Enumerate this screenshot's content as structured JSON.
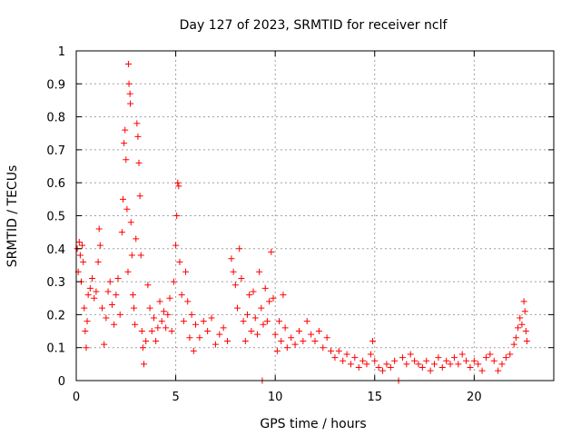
{
  "chart_data": {
    "type": "scatter",
    "title": "Day 127 of 2023, SRMTID for receiver nclf",
    "xlabel": "GPS time / hours",
    "ylabel": "SRMTID / TECUs",
    "xlim": [
      0,
      24
    ],
    "ylim": [
      0,
      1
    ],
    "xticks": [
      0,
      5,
      10,
      15,
      20
    ],
    "xtick_labels": [
      "0",
      "5",
      "10",
      "15",
      "20"
    ],
    "yticks": [
      0,
      0.1,
      0.2,
      0.3,
      0.4,
      0.5,
      0.6,
      0.7,
      0.8,
      0.9,
      1
    ],
    "ytick_labels": [
      "0",
      "0.1",
      "0.2",
      "0.3",
      "0.4",
      "0.5",
      "0.6",
      "0.7",
      "0.8",
      "0.9",
      "1"
    ],
    "grid": true,
    "marker": "+",
    "color": "#ff0000",
    "series": [
      {
        "name": "SRMTID",
        "points": [
          [
            0.05,
            0.4
          ],
          [
            0.1,
            0.33
          ],
          [
            0.15,
            0.42
          ],
          [
            0.2,
            0.38
          ],
          [
            0.25,
            0.3
          ],
          [
            0.3,
            0.41
          ],
          [
            0.35,
            0.36
          ],
          [
            0.4,
            0.22
          ],
          [
            0.45,
            0.15
          ],
          [
            0.5,
            0.1
          ],
          [
            0.55,
            0.18
          ],
          [
            0.6,
            0.26
          ],
          [
            0.7,
            0.28
          ],
          [
            0.8,
            0.31
          ],
          [
            0.9,
            0.25
          ],
          [
            1.0,
            0.27
          ],
          [
            1.1,
            0.36
          ],
          [
            1.15,
            0.46
          ],
          [
            1.2,
            0.41
          ],
          [
            1.3,
            0.22
          ],
          [
            1.4,
            0.11
          ],
          [
            1.5,
            0.19
          ],
          [
            1.6,
            0.27
          ],
          [
            1.7,
            0.3
          ],
          [
            1.8,
            0.23
          ],
          [
            1.9,
            0.17
          ],
          [
            2.0,
            0.26
          ],
          [
            2.1,
            0.31
          ],
          [
            2.2,
            0.2
          ],
          [
            2.3,
            0.45
          ],
          [
            2.35,
            0.55
          ],
          [
            2.4,
            0.72
          ],
          [
            2.45,
            0.76
          ],
          [
            2.5,
            0.67
          ],
          [
            2.55,
            0.52
          ],
          [
            2.6,
            0.33
          ],
          [
            2.62,
            0.96
          ],
          [
            2.65,
            0.9
          ],
          [
            2.7,
            0.87
          ],
          [
            2.72,
            0.84
          ],
          [
            2.75,
            0.48
          ],
          [
            2.8,
            0.38
          ],
          [
            2.85,
            0.26
          ],
          [
            2.9,
            0.22
          ],
          [
            2.95,
            0.17
          ],
          [
            3.0,
            0.43
          ],
          [
            3.05,
            0.78
          ],
          [
            3.1,
            0.74
          ],
          [
            3.15,
            0.66
          ],
          [
            3.2,
            0.56
          ],
          [
            3.25,
            0.38
          ],
          [
            3.3,
            0.15
          ],
          [
            3.35,
            0.1
          ],
          [
            3.4,
            0.05
          ],
          [
            3.5,
            0.12
          ],
          [
            3.6,
            0.29
          ],
          [
            3.7,
            0.22
          ],
          [
            3.8,
            0.15
          ],
          [
            3.9,
            0.19
          ],
          [
            4.0,
            0.12
          ],
          [
            4.1,
            0.16
          ],
          [
            4.2,
            0.24
          ],
          [
            4.3,
            0.18
          ],
          [
            4.4,
            0.21
          ],
          [
            4.5,
            0.16
          ],
          [
            4.6,
            0.2
          ],
          [
            4.7,
            0.25
          ],
          [
            4.8,
            0.15
          ],
          [
            4.9,
            0.3
          ],
          [
            5.0,
            0.41
          ],
          [
            5.05,
            0.5
          ],
          [
            5.1,
            0.6
          ],
          [
            5.15,
            0.59
          ],
          [
            5.2,
            0.36
          ],
          [
            5.3,
            0.26
          ],
          [
            5.4,
            0.18
          ],
          [
            5.5,
            0.33
          ],
          [
            5.6,
            0.24
          ],
          [
            5.7,
            0.13
          ],
          [
            5.8,
            0.2
          ],
          [
            5.9,
            0.09
          ],
          [
            6.0,
            0.17
          ],
          [
            6.2,
            0.13
          ],
          [
            6.4,
            0.18
          ],
          [
            6.6,
            0.15
          ],
          [
            6.8,
            0.19
          ],
          [
            7.0,
            0.11
          ],
          [
            7.2,
            0.14
          ],
          [
            7.4,
            0.16
          ],
          [
            7.6,
            0.12
          ],
          [
            7.8,
            0.37
          ],
          [
            7.9,
            0.33
          ],
          [
            8.0,
            0.29
          ],
          [
            8.1,
            0.22
          ],
          [
            8.2,
            0.4
          ],
          [
            8.3,
            0.31
          ],
          [
            8.4,
            0.18
          ],
          [
            8.5,
            0.12
          ],
          [
            8.6,
            0.2
          ],
          [
            8.7,
            0.26
          ],
          [
            8.8,
            0.15
          ],
          [
            8.9,
            0.27
          ],
          [
            9.0,
            0.19
          ],
          [
            9.1,
            0.14
          ],
          [
            9.2,
            0.33
          ],
          [
            9.3,
            0.22
          ],
          [
            9.35,
            0.0
          ],
          [
            9.4,
            0.17
          ],
          [
            9.5,
            0.28
          ],
          [
            9.6,
            0.18
          ],
          [
            9.7,
            0.24
          ],
          [
            9.8,
            0.39
          ],
          [
            9.9,
            0.25
          ],
          [
            10.0,
            0.14
          ],
          [
            10.1,
            0.09
          ],
          [
            10.2,
            0.18
          ],
          [
            10.3,
            0.12
          ],
          [
            10.4,
            0.26
          ],
          [
            10.5,
            0.16
          ],
          [
            10.6,
            0.1
          ],
          [
            10.8,
            0.13
          ],
          [
            11.0,
            0.11
          ],
          [
            11.2,
            0.15
          ],
          [
            11.4,
            0.12
          ],
          [
            11.6,
            0.18
          ],
          [
            11.8,
            0.14
          ],
          [
            12.0,
            0.12
          ],
          [
            12.2,
            0.15
          ],
          [
            12.4,
            0.1
          ],
          [
            12.6,
            0.13
          ],
          [
            12.8,
            0.09
          ],
          [
            13.0,
            0.07
          ],
          [
            13.2,
            0.09
          ],
          [
            13.4,
            0.06
          ],
          [
            13.6,
            0.08
          ],
          [
            13.8,
            0.05
          ],
          [
            14.0,
            0.07
          ],
          [
            14.2,
            0.04
          ],
          [
            14.4,
            0.06
          ],
          [
            14.6,
            0.05
          ],
          [
            14.8,
            0.08
          ],
          [
            14.9,
            0.12
          ],
          [
            15.0,
            0.06
          ],
          [
            15.2,
            0.04
          ],
          [
            15.4,
            0.03
          ],
          [
            15.6,
            0.05
          ],
          [
            15.8,
            0.04
          ],
          [
            16.0,
            0.06
          ],
          [
            16.2,
            0.0
          ],
          [
            16.4,
            0.07
          ],
          [
            16.6,
            0.05
          ],
          [
            16.8,
            0.08
          ],
          [
            17.0,
            0.06
          ],
          [
            17.2,
            0.05
          ],
          [
            17.4,
            0.04
          ],
          [
            17.6,
            0.06
          ],
          [
            17.8,
            0.03
          ],
          [
            18.0,
            0.05
          ],
          [
            18.2,
            0.07
          ],
          [
            18.4,
            0.04
          ],
          [
            18.6,
            0.06
          ],
          [
            18.8,
            0.05
          ],
          [
            19.0,
            0.07
          ],
          [
            19.2,
            0.05
          ],
          [
            19.4,
            0.08
          ],
          [
            19.6,
            0.06
          ],
          [
            19.8,
            0.04
          ],
          [
            20.0,
            0.06
          ],
          [
            20.2,
            0.05
          ],
          [
            20.4,
            0.03
          ],
          [
            20.6,
            0.07
          ],
          [
            20.8,
            0.08
          ],
          [
            21.0,
            0.06
          ],
          [
            21.2,
            0.03
          ],
          [
            21.4,
            0.05
          ],
          [
            21.6,
            0.07
          ],
          [
            21.8,
            0.08
          ],
          [
            22.0,
            0.11
          ],
          [
            22.1,
            0.13
          ],
          [
            22.2,
            0.16
          ],
          [
            22.3,
            0.19
          ],
          [
            22.4,
            0.17
          ],
          [
            22.5,
            0.24
          ],
          [
            22.55,
            0.21
          ],
          [
            22.6,
            0.15
          ],
          [
            22.65,
            0.12
          ]
        ]
      }
    ]
  }
}
